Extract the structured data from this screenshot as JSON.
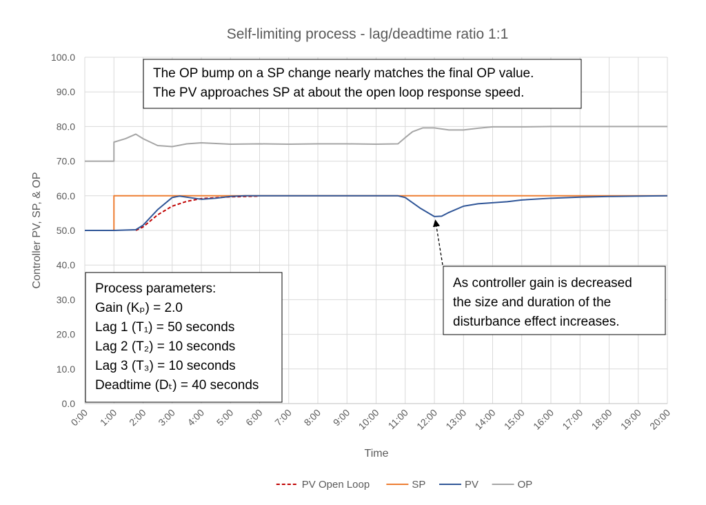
{
  "chart_data": {
    "type": "line",
    "title": "Self-limiting process - lag/deadtime ratio 1:1",
    "xlabel": "Time",
    "ylabel": "Controller PV, SP, & OP",
    "xlim": [
      0,
      20
    ],
    "ylim": [
      0,
      100
    ],
    "grid": true,
    "legend": "bottom",
    "xticks": [
      {
        "value": 0,
        "label": "0:00"
      },
      {
        "value": 1,
        "label": "1:00"
      },
      {
        "value": 2,
        "label": "2:00"
      },
      {
        "value": 3,
        "label": "3:00"
      },
      {
        "value": 4,
        "label": "4:00"
      },
      {
        "value": 5,
        "label": "5:00"
      },
      {
        "value": 6,
        "label": "6:00"
      },
      {
        "value": 7,
        "label": "7:00"
      },
      {
        "value": 8,
        "label": "8:00"
      },
      {
        "value": 9,
        "label": "9:00"
      },
      {
        "value": 10,
        "label": "10:00"
      },
      {
        "value": 11,
        "label": "11:00"
      },
      {
        "value": 12,
        "label": "12:00"
      },
      {
        "value": 13,
        "label": "13:00"
      },
      {
        "value": 14,
        "label": "14:00"
      },
      {
        "value": 15,
        "label": "15:00"
      },
      {
        "value": 16,
        "label": "16:00"
      },
      {
        "value": 17,
        "label": "17:00"
      },
      {
        "value": 18,
        "label": "18:00"
      },
      {
        "value": 19,
        "label": "19:00"
      },
      {
        "value": 20,
        "label": "20:00"
      }
    ],
    "yticks": [
      {
        "value": 0,
        "label": "0.0"
      },
      {
        "value": 10,
        "label": "10.0"
      },
      {
        "value": 20,
        "label": "20.0"
      },
      {
        "value": 30,
        "label": "30.0"
      },
      {
        "value": 40,
        "label": "40.0"
      },
      {
        "value": 50,
        "label": "50.0"
      },
      {
        "value": 60,
        "label": "60.0"
      },
      {
        "value": 70,
        "label": "70.0"
      },
      {
        "value": 80,
        "label": "80.0"
      },
      {
        "value": 90,
        "label": "90.0"
      },
      {
        "value": 100,
        "label": "100.0"
      }
    ],
    "series": [
      {
        "name": "PV Open Loop",
        "color": "#c00000",
        "dashed": true,
        "x": [
          1.75,
          2,
          2.5,
          3,
          3.5,
          4,
          5,
          6
        ],
        "values": [
          50,
          51,
          54.5,
          57,
          58.4,
          59.2,
          59.7,
          59.9
        ]
      },
      {
        "name": "SP",
        "color": "#ed7d31",
        "dashed": false,
        "x": [
          0,
          1,
          1,
          20
        ],
        "values": [
          50,
          50,
          60,
          60
        ]
      },
      {
        "name": "PV",
        "color": "#2f5597",
        "dashed": false,
        "x": [
          0,
          1,
          1.75,
          2,
          2.5,
          3,
          3.25,
          3.5,
          4,
          4.5,
          5,
          5.5,
          6,
          10,
          10.75,
          11,
          11.5,
          12,
          12.25,
          12.5,
          13,
          13.5,
          14,
          14.5,
          15,
          16,
          17,
          18,
          19,
          20
        ],
        "values": [
          50,
          50,
          50.2,
          51.5,
          56,
          59.5,
          59.9,
          59.6,
          59,
          59.3,
          59.8,
          60,
          60,
          60,
          60,
          59.5,
          56.5,
          54,
          54.1,
          55.2,
          57,
          57.7,
          58,
          58.3,
          58.8,
          59.3,
          59.6,
          59.8,
          59.9,
          60
        ]
      },
      {
        "name": "OP",
        "color": "#a5a5a5",
        "dashed": false,
        "x": [
          0,
          1,
          1,
          1.4,
          1.75,
          2,
          2.5,
          3,
          3.5,
          4,
          4.5,
          5,
          6,
          7,
          8,
          9,
          10,
          10.75,
          11,
          11.25,
          11.6,
          12,
          12.5,
          13,
          13.5,
          14,
          15,
          16,
          20
        ],
        "values": [
          70,
          70,
          75.5,
          76.5,
          77.8,
          76.5,
          74.5,
          74.2,
          75,
          75.3,
          75.1,
          74.9,
          75,
          74.9,
          75,
          75,
          74.9,
          75,
          76.8,
          78.5,
          79.6,
          79.6,
          79,
          79,
          79.5,
          79.9,
          79.9,
          80,
          80
        ]
      }
    ],
    "annotations": [
      {
        "lines": [
          "The OP bump on a SP change nearly matches the final OP value.",
          "The PV approaches SP at about the open loop response speed."
        ]
      },
      {
        "lines": [
          "Process parameters:",
          "Gain (Kₚ) = 2.0",
          "Lag 1 (T₁) = 50 seconds",
          "Lag 2 (T₂) = 10 seconds",
          "Lag 3 (T₃) = 10 seconds",
          "Deadtime (Dₜ) = 40 seconds"
        ]
      },
      {
        "lines": [
          "As controller gain is decreased",
          "the size and duration of the",
          "disturbance effect increases."
        ]
      }
    ]
  }
}
